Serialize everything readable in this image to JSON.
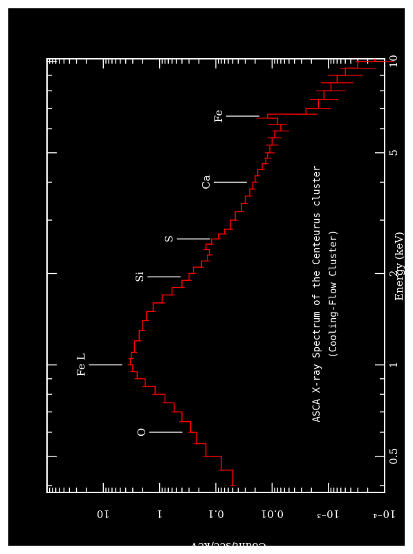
{
  "chart_data": {
    "type": "line",
    "orientation": "rotated-90-clockwise",
    "title": "ASCA X-ray Spectrum of the Centeurus cluster",
    "subtitle": "(Cooling-Flow Cluster)",
    "xlabel": "Energy (keV)",
    "ylabel": "Count/sec/keV",
    "xscale": "log",
    "yscale": "log",
    "xlim": [
      0.38,
      10.2
    ],
    "ylim": [
      0.0001,
      100
    ],
    "x_ticks": [
      {
        "value": 0.5,
        "label": "0.5"
      },
      {
        "value": 1,
        "label": "1"
      },
      {
        "value": 2,
        "label": "2"
      },
      {
        "value": 5,
        "label": "5"
      },
      {
        "value": 10,
        "label": "10"
      }
    ],
    "y_ticks": [
      {
        "value": 10,
        "label": "10"
      },
      {
        "value": 1,
        "label": "1"
      },
      {
        "value": 0.1,
        "label": "0.1"
      },
      {
        "value": 0.01,
        "label": "0.01"
      },
      {
        "value": 0.001,
        "label": "10⁻³"
      },
      {
        "value": 0.0001,
        "label": "10⁻⁴"
      }
    ],
    "series": [
      {
        "color": "#ff0000",
        "x": [
          0.4,
          0.45,
          0.5,
          0.55,
          0.6,
          0.65,
          0.7,
          0.75,
          0.8,
          0.85,
          0.9,
          0.95,
          1.0,
          1.05,
          1.1,
          1.2,
          1.3,
          1.4,
          1.5,
          1.6,
          1.7,
          1.8,
          1.9,
          2.0,
          2.1,
          2.2,
          2.3,
          2.4,
          2.5,
          2.6,
          2.7,
          2.8,
          3.0,
          3.2,
          3.4,
          3.6,
          3.8,
          4.0,
          4.2,
          4.4,
          4.6,
          4.8,
          5.0,
          5.3,
          5.6,
          5.9,
          6.2,
          6.5,
          6.7,
          7.0,
          7.5,
          8.0,
          8.5,
          9.0,
          9.5,
          10.0
        ],
        "y": [
          0.05,
          0.08,
          0.15,
          0.22,
          0.28,
          0.4,
          0.55,
          0.8,
          1.2,
          1.8,
          2.5,
          3.0,
          3.3,
          3.2,
          2.8,
          2.3,
          2.0,
          1.7,
          1.3,
          0.9,
          0.6,
          0.4,
          0.3,
          0.25,
          0.18,
          0.14,
          0.13,
          0.15,
          0.12,
          0.09,
          0.07,
          0.055,
          0.045,
          0.035,
          0.03,
          0.025,
          0.022,
          0.02,
          0.018,
          0.015,
          0.013,
          0.012,
          0.011,
          0.01,
          0.009,
          0.007,
          0.008,
          0.012,
          0.0025,
          0.0015,
          0.0012,
          0.0009,
          0.0007,
          0.0005,
          0.0003,
          0.00015
        ]
      }
    ],
    "line_labels": [
      {
        "text": "O",
        "energy": 0.6
      },
      {
        "text": "Fe L",
        "energy": 1.0
      },
      {
        "text": "Si",
        "energy": 1.95
      },
      {
        "text": "S",
        "energy": 2.6
      },
      {
        "text": "Ca",
        "energy": 4.0
      },
      {
        "text": "Fe",
        "energy": 6.6
      }
    ],
    "grid": false,
    "background": "#000000",
    "foreground": "#ffffff"
  }
}
